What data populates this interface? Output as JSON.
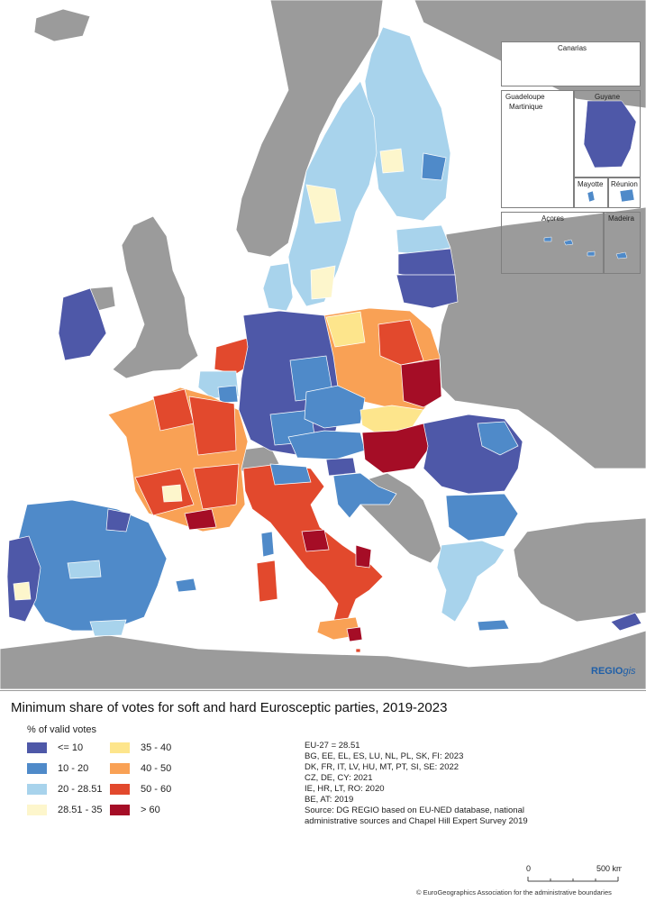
{
  "title": "Minimum share of votes for soft and hard Eurosceptic parties, 2019-2023",
  "brand": {
    "main": "REGIO",
    "suffix": "gis"
  },
  "insets": {
    "canarias": "Canarias",
    "guadeloupe": "Guadeloupe",
    "martinique": "Martinique",
    "guyane": "Guyane",
    "mayotte": "Mayotte",
    "reunion": "Réunion",
    "acores": "Açores",
    "madeira": "Madeira"
  },
  "legend": {
    "title": "% of valid votes",
    "items": [
      {
        "label": "<= 10",
        "color": "#4e58a8"
      },
      {
        "label": "10 - 20",
        "color": "#4f8ac9"
      },
      {
        "label": "20 - 28.51",
        "color": "#a8d3ec"
      },
      {
        "label": "28.51 - 35",
        "color": "#fdf6cc"
      },
      {
        "label": "35 - 40",
        "color": "#fde58c"
      },
      {
        "label": "40 - 50",
        "color": "#f9a155"
      },
      {
        "label": "50 - 60",
        "color": "#e2492d"
      },
      {
        "label": "> 60",
        "color": "#a50d26"
      }
    ]
  },
  "notes": [
    "EU-27 = 28.51",
    "BG, EE, EL, ES, LU, NL, PL, SK, FI: 2023",
    "DK, FR, IT, LV, HU, MT, PT, SI, SE: 2022",
    "CZ, DE, CY: 2021",
    "IE, HR, LT, RO: 2020",
    "BE, AT: 2019",
    "Source: DG REGIO based on EU-NED database, national",
    "administrative sources and Chapel Hill Expert Survey 2019"
  ],
  "scale": {
    "zero": "0",
    "distance": "500 km"
  },
  "copyright": "© EuroGeographics Association for the administrative boundaries",
  "colors": {
    "sea": "#ffffff",
    "non_eu_land": "#9b9b9b",
    "border": "#ffffff"
  }
}
